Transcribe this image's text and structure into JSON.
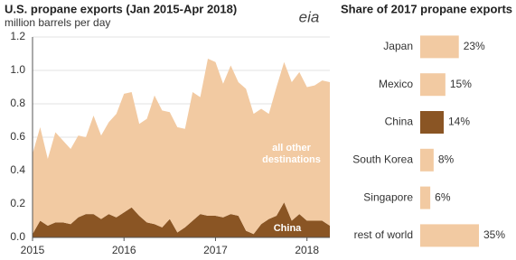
{
  "logo": "eia",
  "chart_data": [
    {
      "type": "area",
      "title": "U.S. propane exports (Jan 2015-Apr 2018)",
      "subtitle": "million barrels per day",
      "x": [
        "2015-01",
        "2015-02",
        "2015-03",
        "2015-04",
        "2015-05",
        "2015-06",
        "2015-07",
        "2015-08",
        "2015-09",
        "2015-10",
        "2015-11",
        "2015-12",
        "2016-01",
        "2016-02",
        "2016-03",
        "2016-04",
        "2016-05",
        "2016-06",
        "2016-07",
        "2016-08",
        "2016-09",
        "2016-10",
        "2016-11",
        "2016-12",
        "2017-01",
        "2017-02",
        "2017-03",
        "2017-04",
        "2017-05",
        "2017-06",
        "2017-07",
        "2017-08",
        "2017-09",
        "2017-10",
        "2017-11",
        "2017-12",
        "2018-01",
        "2018-02",
        "2018-03",
        "2018-04"
      ],
      "series": [
        {
          "name": "China",
          "color": "#8a5524",
          "values": [
            0.02,
            0.1,
            0.07,
            0.09,
            0.09,
            0.08,
            0.12,
            0.14,
            0.14,
            0.11,
            0.14,
            0.12,
            0.15,
            0.18,
            0.13,
            0.09,
            0.08,
            0.06,
            0.11,
            0.03,
            0.06,
            0.1,
            0.14,
            0.13,
            0.13,
            0.12,
            0.14,
            0.13,
            0.04,
            0.02,
            0.08,
            0.11,
            0.13,
            0.21,
            0.1,
            0.14,
            0.1,
            0.1,
            0.1,
            0.07
          ]
        },
        {
          "name": "all other destinations",
          "color": "#f2caa2",
          "values": [
            0.48,
            0.56,
            0.4,
            0.54,
            0.49,
            0.45,
            0.49,
            0.46,
            0.59,
            0.5,
            0.55,
            0.62,
            0.71,
            0.69,
            0.55,
            0.62,
            0.77,
            0.7,
            0.64,
            0.63,
            0.59,
            0.77,
            0.7,
            0.94,
            0.92,
            0.8,
            0.89,
            0.8,
            0.85,
            0.72,
            0.69,
            0.63,
            0.77,
            0.84,
            0.83,
            0.85,
            0.8,
            0.81,
            0.84,
            0.86
          ]
        }
      ],
      "stacked": true,
      "xlim": [
        "2015-01",
        "2018-04"
      ],
      "xticks": [
        {
          "value": "2015-01",
          "label": "2015"
        },
        {
          "value": "2016-01",
          "label": "2016"
        },
        {
          "value": "2017-01",
          "label": "2017"
        },
        {
          "value": "2018-01",
          "label": "2018"
        }
      ],
      "ylim": [
        0,
        1.2
      ],
      "yticks": [
        {
          "value": 0,
          "label": "0.0"
        },
        0.2,
        0.4,
        0.6,
        0.8,
        {
          "value": 1,
          "label": "1.0"
        },
        1.2
      ],
      "grid": true
    },
    {
      "type": "hbar",
      "title": "Share of 2017 propane exports",
      "categories": [
        "Japan",
        "Mexico",
        "China",
        "South Korea",
        "Singapore",
        "rest of world"
      ],
      "values": [
        23,
        15,
        14,
        8,
        6,
        35
      ],
      "value_labels": [
        "23%",
        "15%",
        "14%",
        "8%",
        "6%",
        "35%"
      ],
      "colors": [
        "#f2caa2",
        "#f2caa2",
        "#8a5524",
        "#f2caa2",
        "#f2caa2",
        "#f2caa2"
      ]
    }
  ]
}
